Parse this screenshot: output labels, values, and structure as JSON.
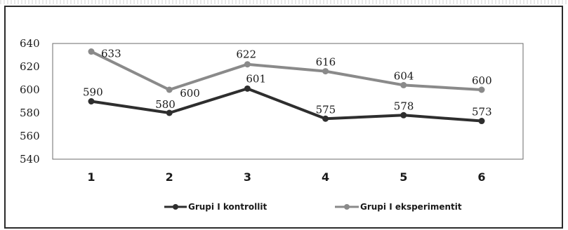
{
  "chart_data": {
    "type": "line",
    "categories": [
      "1",
      "2",
      "3",
      "4",
      "5",
      "6"
    ],
    "series": [
      {
        "name": "Grupi I kontrollit",
        "values": [
          590,
          580,
          601,
          575,
          578,
          573
        ],
        "color": "#2e2e2e"
      },
      {
        "name": "Grupi I eksperimentit",
        "values": [
          633,
          600,
          622,
          616,
          604,
          600
        ],
        "color": "#8a8a8a"
      }
    ],
    "data_labels": [
      [
        "590",
        "580",
        "601",
        "575",
        "578",
        "573"
      ],
      [
        "633",
        "600",
        "622",
        "616",
        "604",
        "600"
      ]
    ],
    "yticks": [
      "540",
      "560",
      "580",
      "600",
      "620",
      "640"
    ],
    "ylim": [
      540,
      640
    ],
    "grid": false,
    "legend_position": "bottom"
  }
}
